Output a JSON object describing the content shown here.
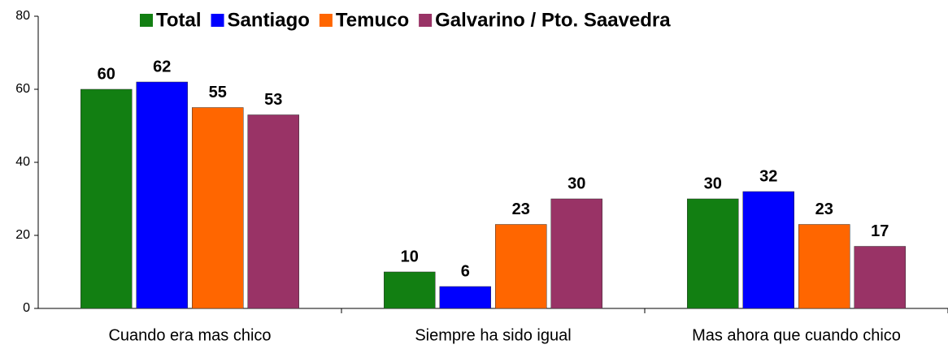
{
  "chart_data": {
    "type": "bar",
    "categories": [
      "Cuando era mas chico",
      "Siempre ha sido igual",
      "Mas ahora que cuando chico"
    ],
    "series": [
      {
        "name": "Total",
        "color": "#127f12",
        "values": [
          60,
          10,
          30
        ]
      },
      {
        "name": "Santiago",
        "color": "#0000ff",
        "values": [
          62,
          6,
          32
        ]
      },
      {
        "name": "Temuco",
        "color": "#ff6600",
        "values": [
          55,
          23,
          23
        ]
      },
      {
        "name": "Galvarino / Pto. Saavedra",
        "color": "#993366",
        "values": [
          53,
          30,
          17
        ]
      }
    ],
    "ylim": [
      0,
      80
    ],
    "yticks": [
      0,
      20,
      40,
      60,
      80
    ],
    "grid": false,
    "legend": "top"
  }
}
